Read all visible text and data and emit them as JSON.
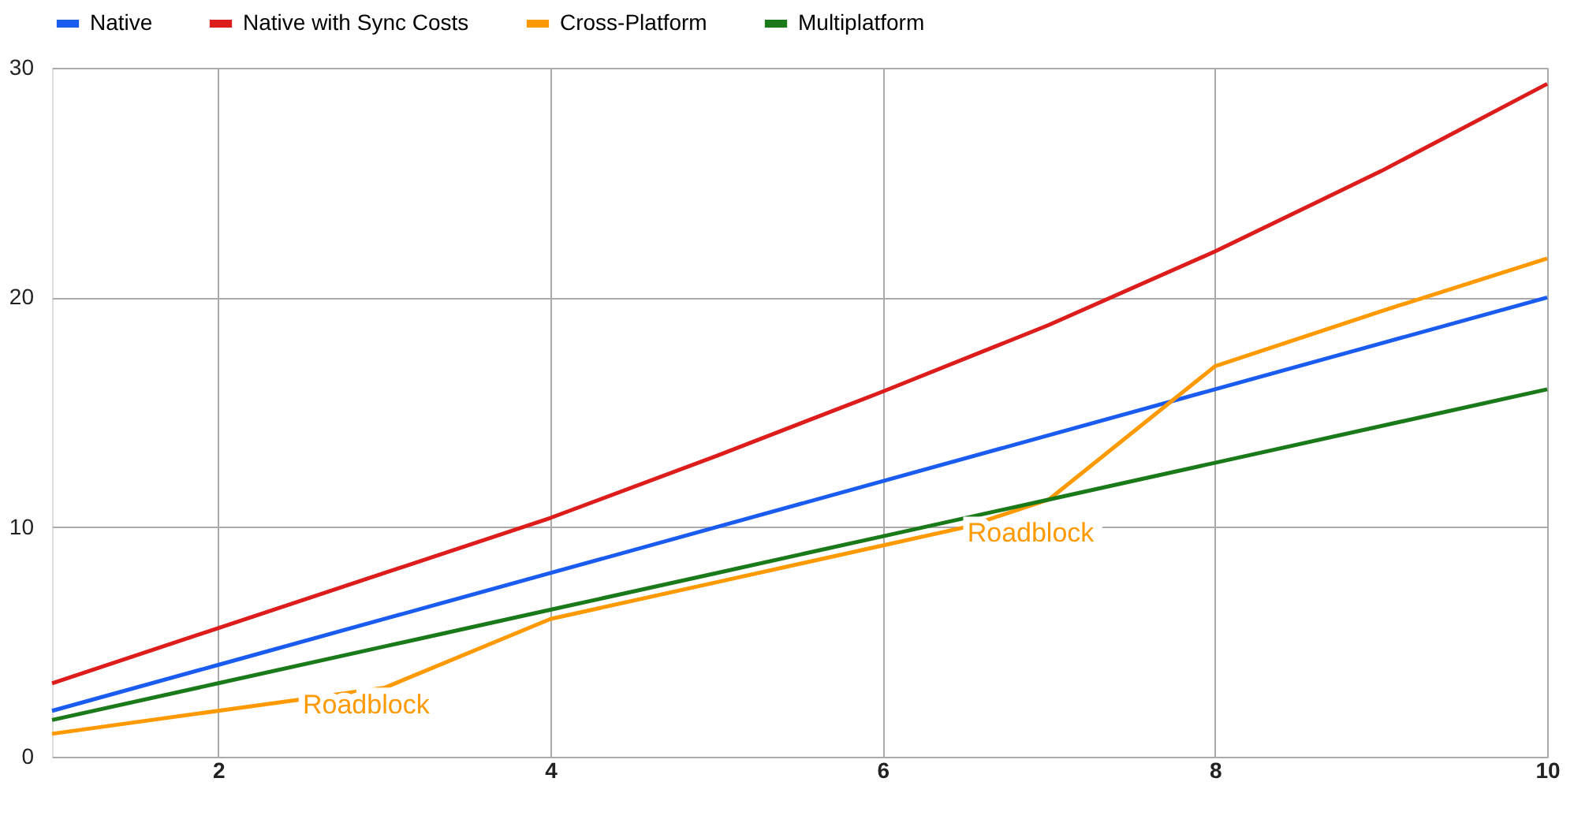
{
  "chart_data": {
    "type": "line",
    "series": [
      {
        "name": "Native",
        "color": "#1a5cf0",
        "x": [
          1,
          2,
          3,
          4,
          5,
          6,
          7,
          8,
          9,
          10
        ],
        "values": [
          2,
          4,
          6,
          8,
          10,
          12,
          14,
          16,
          18,
          20
        ]
      },
      {
        "name": "Native with Sync Costs",
        "color": "#dd1c1c",
        "x": [
          1,
          2,
          3,
          4,
          5,
          6,
          7,
          8,
          9,
          10
        ],
        "values": [
          3.2,
          5.6,
          8,
          10.4,
          13.1,
          15.9,
          18.8,
          22,
          25.5,
          29.3
        ]
      },
      {
        "name": "Cross-Platform",
        "color": "#ff9900",
        "x": [
          1,
          2,
          2.5,
          3,
          4,
          5,
          6,
          6.5,
          7,
          8,
          9,
          10
        ],
        "values": [
          1,
          2,
          2.5,
          3,
          6,
          7.6,
          9.2,
          10,
          11.2,
          17,
          19.4,
          21.7
        ]
      },
      {
        "name": "Multiplatform",
        "color": "#1a7a1a",
        "x": [
          1,
          2,
          3,
          4,
          5,
          6,
          7,
          8,
          9,
          10
        ],
        "values": [
          1.6,
          3.2,
          4.8,
          6.4,
          8,
          9.6,
          11.2,
          12.8,
          14.4,
          16
        ]
      }
    ],
    "annotations": [
      {
        "text": "Roadblock",
        "x": 2.5,
        "y": 2.5
      },
      {
        "text": "Roadblock",
        "x": 6.5,
        "y": 10
      }
    ],
    "xlim": [
      1,
      10
    ],
    "xticks": [
      2,
      4,
      6,
      8,
      10
    ],
    "ylim": [
      0,
      30
    ],
    "yticks": [
      0,
      10,
      20,
      30
    ],
    "grid": true,
    "legend": "top",
    "marker": "none",
    "line_style": "solid"
  }
}
